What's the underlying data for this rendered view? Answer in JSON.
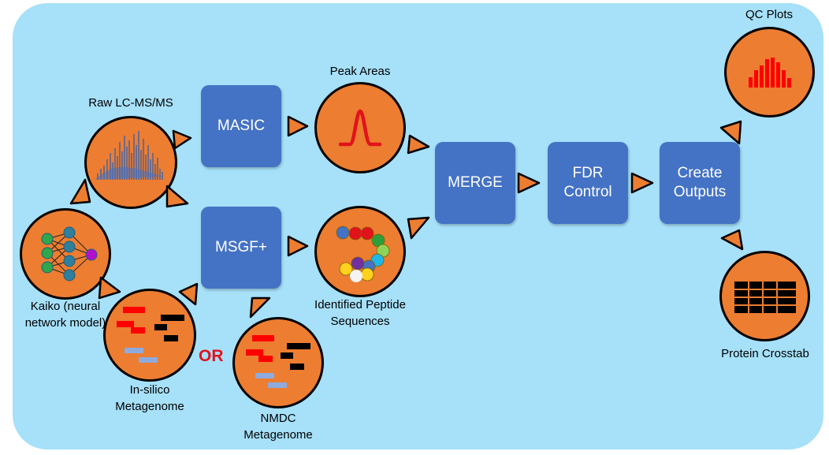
{
  "colors": {
    "panel": "#a6e0f9",
    "process_box": "#4472c4",
    "data_circle": "#ed7d31",
    "arrow_fill": "#ed7d31",
    "or_text": "#e2121b"
  },
  "process_boxes": {
    "masic": "MASIC",
    "msgf": "MSGF+",
    "merge": "MERGE",
    "fdr": "FDR\nControl",
    "create_outputs": "Create\nOutputs"
  },
  "data_nodes": {
    "raw_lcms": {
      "label": "Raw LC-MS/MS",
      "icon": "ms-spectrum-icon"
    },
    "peak_areas": {
      "label": "Peak Areas",
      "icon": "peak-curve-icon"
    },
    "identified_peptides": {
      "label": "Identified Peptide\nSequences",
      "icon": "peptide-beads-icon"
    },
    "kaiko": {
      "label": "Kaiko (neural\nnetwork model)",
      "icon": "neural-network-icon"
    },
    "insilico": {
      "label": "In-silico\nMetagenome",
      "icon": "metagenome-bars-icon"
    },
    "nmdc": {
      "label": "NMDC\nMetagenome",
      "icon": "metagenome-bars-icon"
    },
    "qc_plots": {
      "label": "QC Plots",
      "icon": "histogram-icon"
    },
    "protein_crosstab": {
      "label": "Protein Crosstab",
      "icon": "table-grid-icon"
    }
  },
  "or_label": "OR",
  "arrow_icon": "triangle-arrow-icon"
}
